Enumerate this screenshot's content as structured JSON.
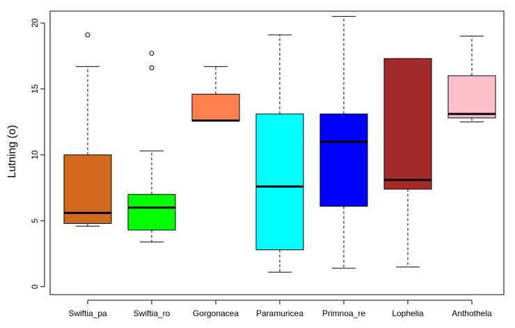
{
  "chart_data": {
    "type": "boxplot",
    "title": "",
    "xlabel": "",
    "ylabel": "Lutning (o)",
    "ylim": [
      -0.6,
      20.9
    ],
    "yticks": [
      0,
      5,
      10,
      15,
      20
    ],
    "ytick_labels": [
      "0",
      "5",
      "10",
      "15",
      "20"
    ],
    "grid": false,
    "categories": [
      "Swiftia_pa",
      "Swiftia_ro",
      "Gorgonacea",
      "Paramuricea",
      "Primnoa_re",
      "Lophelia",
      "Anthothela"
    ],
    "boxes": [
      {
        "name": "Swiftia_pa",
        "whisker_low": 4.6,
        "q1": 4.8,
        "median": 5.6,
        "q3": 10.0,
        "whisker_high": 16.7,
        "outliers": [
          19.1
        ],
        "color": "#D2691E"
      },
      {
        "name": "Swiftia_ro",
        "whisker_low": 3.4,
        "q1": 4.3,
        "median": 6.0,
        "q3": 7.0,
        "whisker_high": 10.3,
        "outliers": [
          16.6,
          17.7
        ],
        "color": "#00FF00"
      },
      {
        "name": "Gorgonacea",
        "whisker_low": 12.6,
        "q1": 12.6,
        "median": 12.6,
        "q3": 14.6,
        "whisker_high": 16.7,
        "outliers": [],
        "color": "#FF7F50"
      },
      {
        "name": "Paramuricea",
        "whisker_low": 1.1,
        "q1": 2.8,
        "median": 7.6,
        "q3": 13.1,
        "whisker_high": 19.1,
        "outliers": [],
        "color": "#00FFFF"
      },
      {
        "name": "Primnoa_re",
        "whisker_low": 1.4,
        "q1": 6.1,
        "median": 11.0,
        "q3": 13.1,
        "whisker_high": 20.5,
        "outliers": [],
        "color": "#0000FF"
      },
      {
        "name": "Lophelia",
        "whisker_low": 1.5,
        "q1": 7.4,
        "median": 8.1,
        "q3": 17.3,
        "whisker_high": 17.3,
        "outliers": [],
        "color": "#A52A2A"
      },
      {
        "name": "Anthothela",
        "whisker_low": 12.5,
        "q1": 12.8,
        "median": 13.1,
        "q3": 16.0,
        "whisker_high": 19.0,
        "outliers": [],
        "color": "#FFC0CB"
      }
    ]
  }
}
